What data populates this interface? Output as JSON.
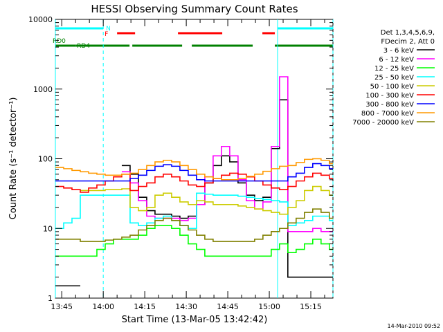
{
  "chart_data": {
    "type": "line",
    "title": "HESSI Observing Summary Count Rates",
    "xlabel": "Start Time (13-Mar-05 13:42:42)",
    "ylabel": "Count Rate (s⁻¹ detector⁻¹)",
    "yscale": "log",
    "ylim": [
      1,
      10000
    ],
    "xlim": [
      "13:42:42",
      "15:23:00"
    ],
    "x_ticks": [
      "13:45",
      "14:00",
      "14:15",
      "14:30",
      "14:45",
      "15:00",
      "15:15"
    ],
    "y_ticks": [
      "1",
      "10",
      "100",
      "1000",
      "10000"
    ],
    "legend_header": [
      "Det 1,3,4,5,6,9,",
      "FDecim 2, Att 0"
    ],
    "legend_position": "right",
    "timestamp": "14-Mar-2010 09:52",
    "x_minutes": [
      0,
      3,
      6,
      9,
      12,
      15,
      18,
      21,
      24,
      27,
      30,
      33,
      36,
      39,
      42,
      45,
      48,
      51,
      54,
      57,
      60,
      63,
      66,
      69,
      72,
      75,
      78,
      81,
      84,
      87,
      90,
      93,
      96,
      99
    ],
    "series": [
      {
        "name": "3 - 6 keV",
        "color": "#000000",
        "values": [
          1.5,
          1.5,
          1.5,
          null,
          null,
          null,
          null,
          null,
          80,
          60,
          28,
          18,
          16,
          16,
          15,
          14,
          15,
          22,
          45,
          80,
          110,
          90,
          45,
          30,
          25,
          28,
          140,
          700,
          2,
          2,
          2,
          2,
          2,
          2
        ]
      },
      {
        "name": "6 - 12 keV",
        "color": "#ff00ff",
        "values": [
          null,
          null,
          null,
          null,
          null,
          null,
          null,
          null,
          65,
          45,
          25,
          15,
          14,
          14,
          14,
          13,
          14,
          22,
          55,
          110,
          150,
          110,
          50,
          25,
          19,
          24,
          150,
          1500,
          9,
          9,
          9,
          10,
          9,
          9
        ]
      },
      {
        "name": "12 - 25 keV",
        "color": "#00ff00",
        "values": [
          4,
          4,
          4,
          4,
          4,
          5,
          6,
          7,
          7,
          7,
          8,
          10,
          11,
          11,
          10,
          8,
          6,
          5,
          4,
          4,
          4,
          4,
          4,
          4,
          4,
          4,
          5,
          6,
          4.5,
          5,
          6,
          7,
          6,
          5
        ]
      },
      {
        "name": "25 - 50 keV",
        "color": "#00ffff",
        "values": [
          10,
          12,
          14,
          30,
          30,
          30,
          30,
          30,
          30,
          12,
          11,
          12,
          14,
          15,
          13,
          11,
          10,
          32,
          31,
          30,
          30,
          30,
          29,
          28,
          27,
          26,
          25,
          24,
          11,
          12,
          13,
          15,
          15,
          13
        ]
      },
      {
        "name": "50 - 100 keV",
        "color": "#cccc00",
        "values": [
          null,
          null,
          null,
          35,
          35,
          35,
          36,
          36,
          37,
          20,
          18,
          20,
          30,
          32,
          28,
          24,
          22,
          25,
          24,
          22,
          22,
          22,
          21,
          20,
          19,
          18,
          17,
          16,
          20,
          25,
          35,
          40,
          35,
          30
        ]
      },
      {
        "name": "100 - 300 keV",
        "color": "#ff0000",
        "values": [
          40,
          38,
          36,
          33,
          38,
          42,
          48,
          55,
          60,
          35,
          40,
          45,
          55,
          60,
          55,
          48,
          42,
          40,
          45,
          52,
          58,
          62,
          60,
          55,
          48,
          42,
          38,
          36,
          40,
          48,
          55,
          62,
          58,
          52
        ]
      },
      {
        "name": "300 - 800 keV",
        "color": "#0000ff",
        "values": [
          48,
          48,
          48,
          48,
          48,
          48,
          48,
          48,
          48,
          52,
          58,
          68,
          78,
          82,
          78,
          68,
          58,
          50,
          48,
          48,
          48,
          48,
          48,
          48,
          48,
          48,
          48,
          48,
          55,
          62,
          75,
          85,
          80,
          72
        ]
      },
      {
        "name": "800 - 7000 keV",
        "color": "#ff9900",
        "values": [
          75,
          72,
          68,
          65,
          62,
          60,
          58,
          58,
          60,
          62,
          70,
          80,
          90,
          95,
          90,
          80,
          70,
          60,
          55,
          52,
          50,
          50,
          52,
          56,
          60,
          66,
          72,
          78,
          80,
          88,
          98,
          100,
          95,
          85
        ]
      },
      {
        "name": "7000 - 20000 keV",
        "color": "#808000",
        "values": [
          7,
          7,
          7,
          6.5,
          6.5,
          6.5,
          6.8,
          7,
          7.5,
          8,
          9.5,
          11,
          13,
          14,
          13,
          11,
          9.5,
          8,
          7,
          6.5,
          6.5,
          6.5,
          6.5,
          6.5,
          7,
          8,
          9,
          10,
          12,
          14,
          17,
          19,
          17,
          14
        ]
      }
    ],
    "annotations": {
      "saa_bar": {
        "label": "",
        "color": "#00ffff",
        "segments": [
          [
            "13:42:42",
            "14:00:00"
          ],
          [
            "15:03:00",
            "15:23:00"
          ]
        ]
      },
      "flare_bar": {
        "label": "F",
        "color": "#ff0000",
        "segments": [
          [
            "14:05:00",
            "14:11:30"
          ],
          [
            "14:27:00",
            "14:43:00"
          ],
          [
            "14:57:30",
            "15:02:00"
          ]
        ]
      },
      "night_label": {
        "label": "N",
        "color": "#00ffff"
      },
      "decim_bar": {
        "labels": [
          "RD0",
          "RD4"
        ],
        "color": "#008000",
        "segments": [
          [
            "13:42:42",
            "13:50:00"
          ],
          [
            "13:50:00",
            "14:09:30"
          ],
          [
            "14:10:30",
            "14:28:30"
          ],
          [
            "14:32:00",
            "14:54:00"
          ],
          [
            "15:02:00",
            "15:23:00"
          ]
        ]
      }
    },
    "vlines": [
      {
        "time": "13:42:42",
        "color": "#00ffff",
        "style": "solid"
      },
      {
        "time": "14:00:00",
        "color": "#00ffff",
        "style": "dashed"
      },
      {
        "time": "15:03:00",
        "color": "#00ffff",
        "style": "solid"
      },
      {
        "time": "15:23:00",
        "color": "#00ffff",
        "style": "dashed"
      }
    ]
  }
}
